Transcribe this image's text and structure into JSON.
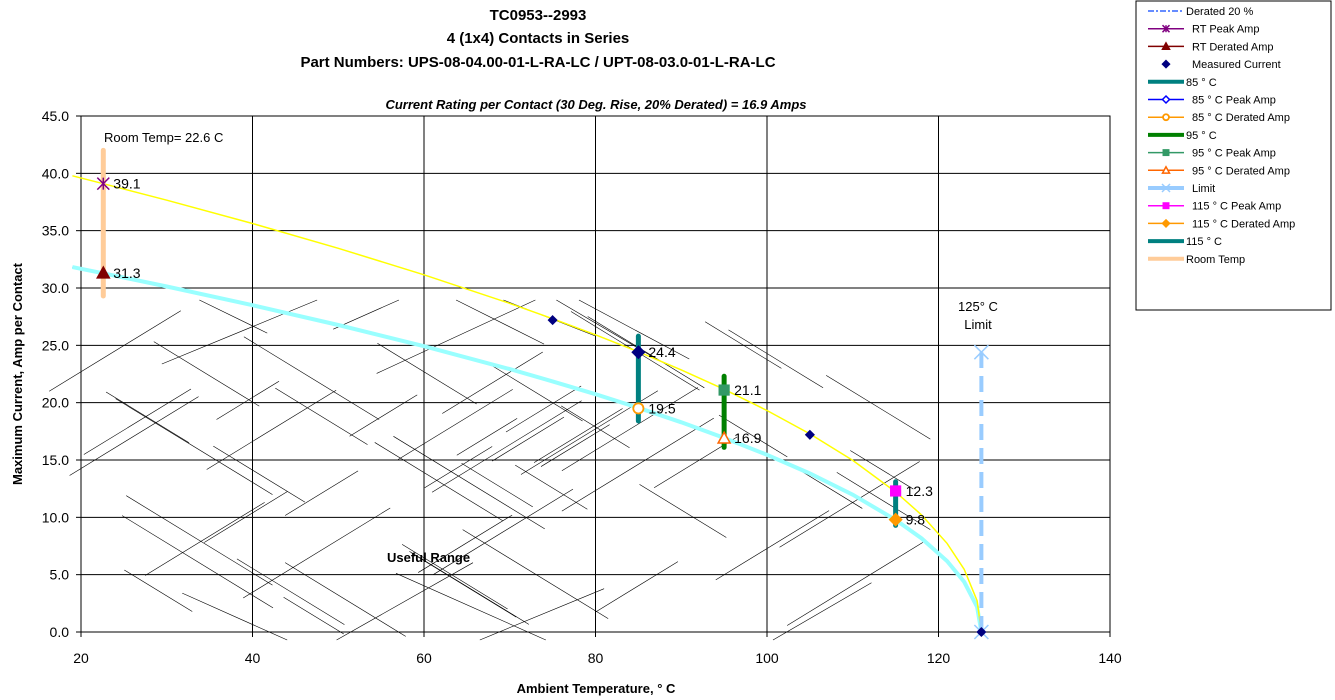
{
  "chart_data": {
    "type": "line",
    "title_lines": [
      "TC0953--2993",
      "4 (1x4) Contacts in Series",
      "Part Numbers: UPS-08-04.00-01-L-RA-LC / UPT-08-03.0-01-L-RA-LC"
    ],
    "subtitle": "Current Rating per Contact (30 Deg. Rise, 20% Derated) = 16.9 Amps",
    "xlabel": "Ambient Temperature,  ° C",
    "ylabel": "Maximum Current, Amp per Contact",
    "xlim": [
      20,
      140
    ],
    "ylim": [
      0,
      45
    ],
    "x_ticks": [
      "20",
      "40",
      "60",
      "80",
      "100",
      "120",
      "140"
    ],
    "y_ticks": [
      "0.0",
      "5.0",
      "10.0",
      "15.0",
      "20.0",
      "25.0",
      "30.0",
      "35.0",
      "40.0",
      "45.0"
    ],
    "grid": true,
    "legend_position": "top-right, outside plot",
    "annotations": {
      "room_temp": "Room Temp= 22.6 C",
      "limit_line1": "125° C",
      "limit_line2": "Limit",
      "useful_range": "Useful Range"
    },
    "curves": {
      "peak": {
        "color": "#ffff00",
        "x": [
          19,
          22.6,
          30,
          40,
          50,
          60,
          70,
          75,
          80,
          85,
          90,
          95,
          100,
          105,
          110,
          115,
          118,
          121,
          123,
          124.5,
          125
        ]
      },
      "derated": {
        "color": "#99ffff",
        "x": [
          19,
          22.6,
          30,
          40,
          50,
          60,
          70,
          75,
          80,
          85,
          90,
          95,
          100,
          105,
          110,
          115,
          118,
          121,
          123,
          124.5,
          125
        ]
      }
    },
    "series": [
      {
        "name": "Derated 20 %",
        "color": "#3366ff",
        "style": "dash-dot"
      },
      {
        "name": "RT Peak Amp",
        "color": "#800080",
        "marker": "star",
        "x": [
          22.6
        ],
        "y": [
          39.1
        ]
      },
      {
        "name": "RT Derated Amp",
        "color": "#800000",
        "marker": "triangle",
        "x": [
          22.6
        ],
        "y": [
          31.3
        ]
      },
      {
        "name": "Measured Current",
        "color": "#000080",
        "marker": "diamond",
        "x": [
          75,
          105,
          125
        ],
        "y": [
          27.2,
          17.2,
          0
        ]
      },
      {
        "name": "85 ° C",
        "color": "#008080",
        "style": "thick",
        "x": [
          85,
          85
        ],
        "y": [
          18.4,
          25.8
        ]
      },
      {
        "name": "85  ° C Peak Amp",
        "color": "#0000ff",
        "marker": "diamond-open",
        "x": [
          85
        ],
        "y": [
          24.4
        ]
      },
      {
        "name": "85  ° C Derated Amp",
        "color": "#ff9900",
        "marker": "circle-open",
        "x": [
          85
        ],
        "y": [
          19.5
        ]
      },
      {
        "name": "95  ° C",
        "color": "#008000",
        "style": "thick",
        "x": [
          95,
          95
        ],
        "y": [
          16.1,
          22.3
        ]
      },
      {
        "name": "95  ° C Peak Amp",
        "color": "#339966",
        "marker": "square",
        "x": [
          95
        ],
        "y": [
          21.1
        ]
      },
      {
        "name": "95  ° C Derated Amp",
        "color": "#ff6600",
        "marker": "triangle-open",
        "x": [
          95
        ],
        "y": [
          16.9
        ]
      },
      {
        "name": "Limit",
        "color": "#99ccff",
        "style": "dashed",
        "x": [
          125,
          125
        ],
        "y": [
          0,
          24.4
        ]
      },
      {
        "name": "115  ° C Peak Amp",
        "color": "#ff00ff",
        "marker": "square",
        "x": [
          115
        ],
        "y": [
          12.3
        ]
      },
      {
        "name": "115  ° C Derated Amp",
        "color": "#ff9900",
        "marker": "diamond",
        "x": [
          115
        ],
        "y": [
          9.8
        ]
      },
      {
        "name": "115  ° C",
        "color": "#008080",
        "style": "thick",
        "x": [
          115,
          115
        ],
        "y": [
          9.3,
          13.1
        ]
      },
      {
        "name": "Room Temp",
        "color": "#ffcc99",
        "style": "thick",
        "x": [
          22.6,
          22.6
        ],
        "y": [
          29.3,
          42
        ]
      }
    ],
    "data_labels": [
      {
        "text": "39.1",
        "x": 22.6,
        "y": 39.1
      },
      {
        "text": "31.3",
        "x": 22.6,
        "y": 31.3
      },
      {
        "text": "24.4",
        "x": 85,
        "y": 24.4
      },
      {
        "text": "19.5",
        "x": 85,
        "y": 19.5
      },
      {
        "text": "21.1",
        "x": 95,
        "y": 21.1
      },
      {
        "text": "16.9",
        "x": 95,
        "y": 16.9
      },
      {
        "text": "12.3",
        "x": 115,
        "y": 12.3
      },
      {
        "text": "9.8",
        "x": 115,
        "y": 9.8
      }
    ]
  }
}
